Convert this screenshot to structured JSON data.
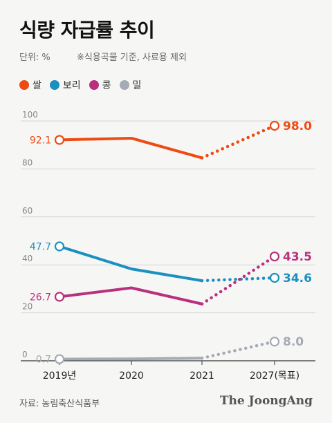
{
  "header": {
    "title": "식량 자급률 추이",
    "unit": "단위: %",
    "note": "※식용곡물 기준, 사료용 제외"
  },
  "footer": {
    "source": "자료: 농림축산식품부",
    "brand": "The JoongAng"
  },
  "chart_data": {
    "type": "line",
    "title": "식량 자급률 추이",
    "x": [
      "2019년",
      "2020",
      "2021",
      "2027(목표)"
    ],
    "yticks": [
      0,
      20,
      40,
      60,
      80,
      100
    ],
    "ylim": [
      0,
      100
    ],
    "grid": true,
    "legend_position": "top-left",
    "series": [
      {
        "name": "쌀",
        "color": "#ee4a14",
        "values": [
          92.1,
          92.8,
          84.6,
          98.0
        ],
        "start_label": "92.1",
        "end_label": "98.0"
      },
      {
        "name": "보리",
        "color": "#1b90c0",
        "values": [
          47.7,
          38.3,
          33.4,
          34.6
        ],
        "start_label": "47.7",
        "end_label": "34.6"
      },
      {
        "name": "콩",
        "color": "#b8307e",
        "values": [
          26.7,
          30.4,
          23.7,
          43.5
        ],
        "start_label": "26.7",
        "end_label": "43.5"
      },
      {
        "name": "밀",
        "color": "#a4abb5",
        "values": [
          0.7,
          0.8,
          1.1,
          8.0
        ],
        "start_label": "0.7",
        "end_label": "8.0"
      }
    ]
  }
}
